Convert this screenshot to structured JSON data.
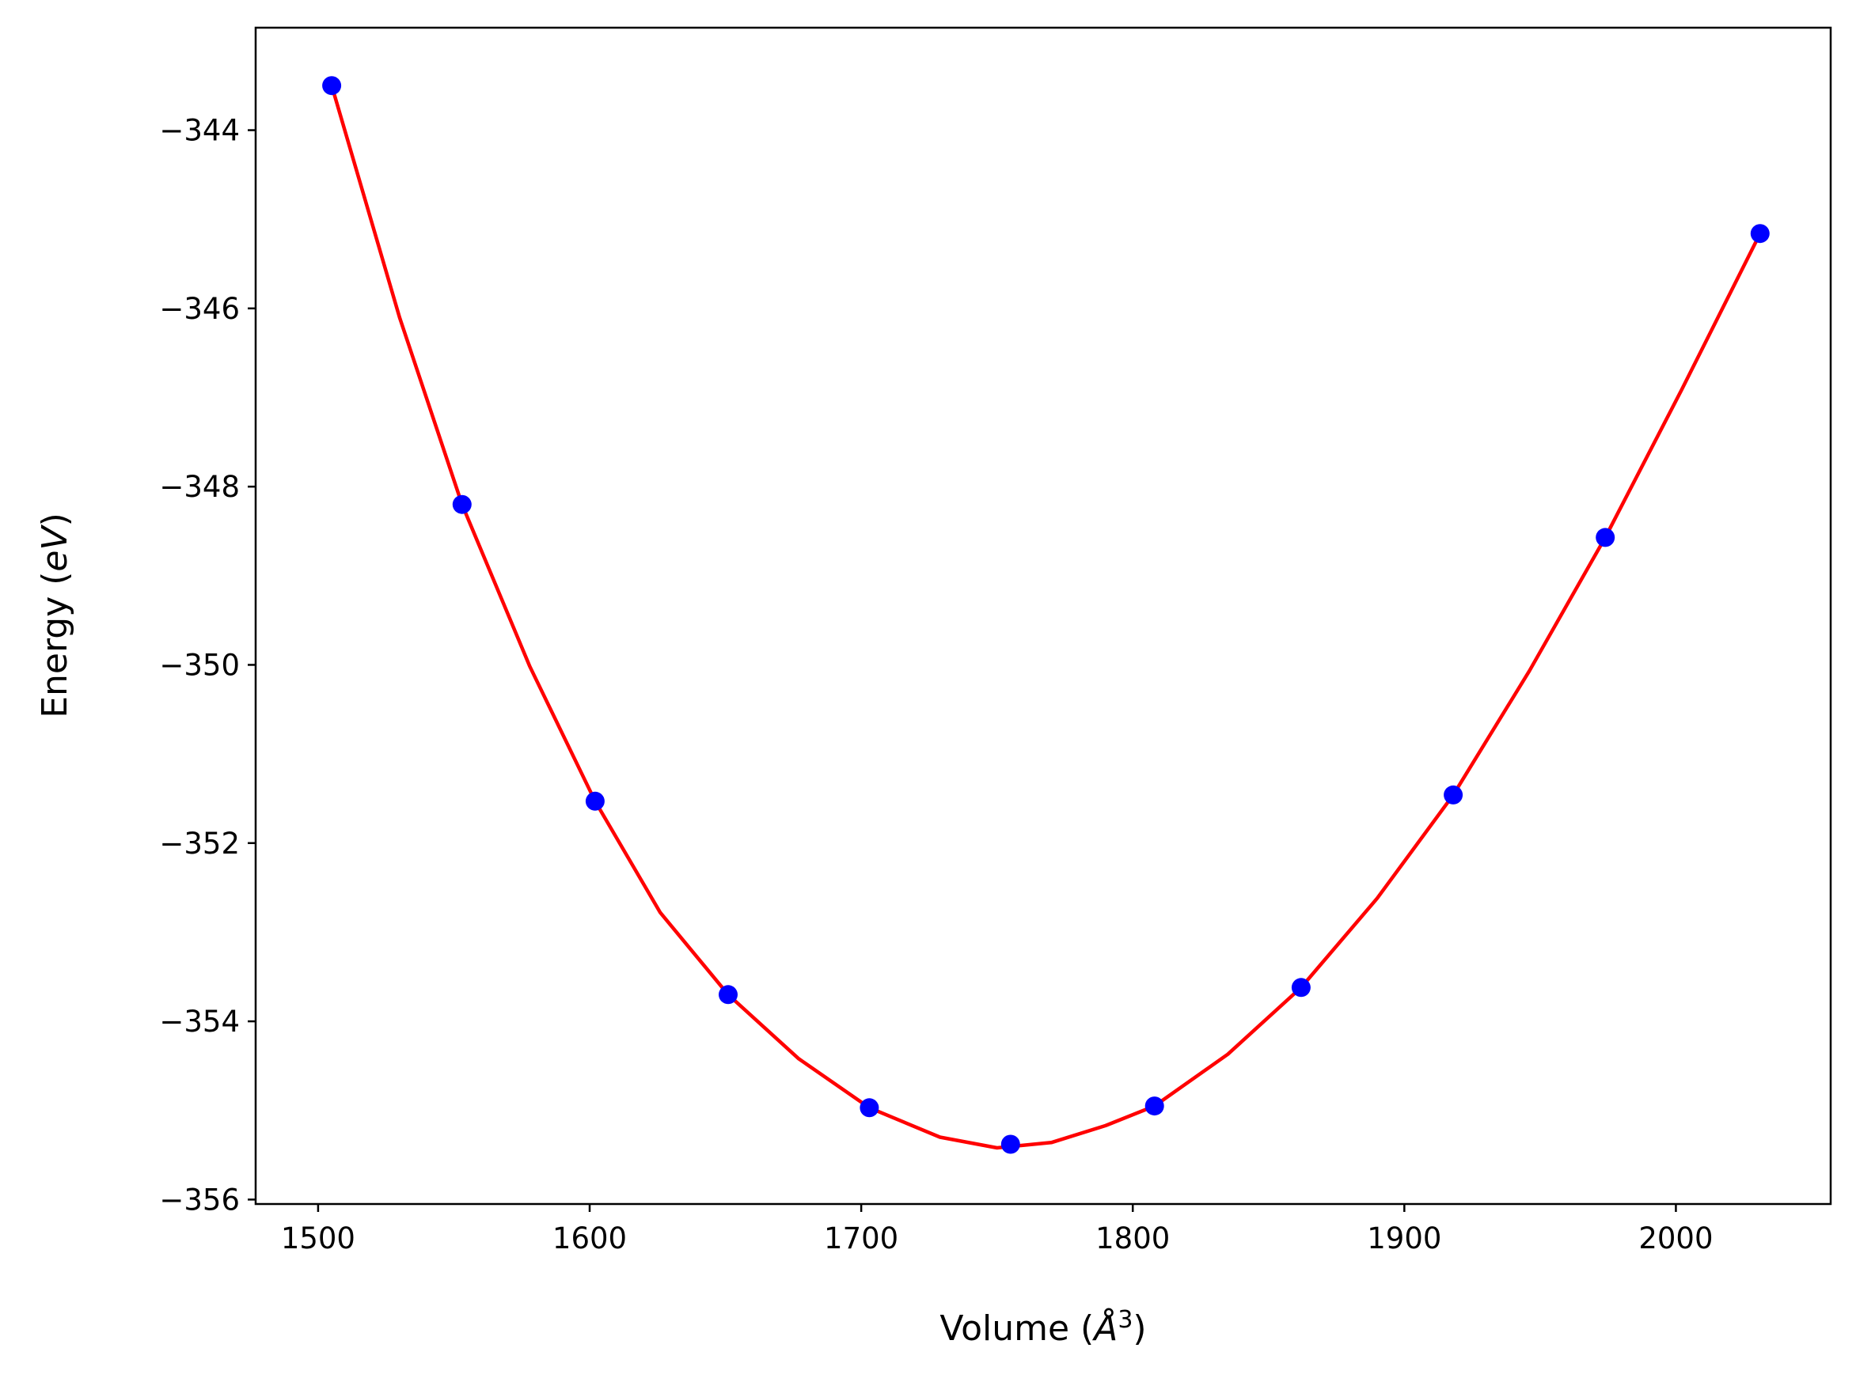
{
  "chart_data": {
    "type": "scatter",
    "title": "",
    "xlabel": {
      "prefix": "Volume (",
      "symbol": "Å",
      "superscript": "3",
      "suffix": ")"
    },
    "ylabel": {
      "prefix": "Energy (",
      "symbol": "eV",
      "suffix": ")"
    },
    "xlim": [
      1477,
      2057
    ],
    "ylim": [
      -356.05,
      -342.85
    ],
    "x_ticks": [
      1500,
      1600,
      1700,
      1800,
      1900,
      2000
    ],
    "y_ticks": [
      -344,
      -346,
      -348,
      -350,
      -352,
      -354,
      -356
    ],
    "x_tick_labels": [
      "1500",
      "1600",
      "1700",
      "1800",
      "1900",
      "2000"
    ],
    "y_tick_labels": [
      "−344",
      "−346",
      "−348",
      "−350",
      "−352",
      "−354",
      "−356"
    ],
    "grid": false,
    "series": [
      {
        "kind": "points",
        "color": "#0000ff",
        "x": [
          1505,
          1553,
          1602,
          1651,
          1703,
          1755,
          1808,
          1862,
          1918,
          1974,
          2031
        ],
        "y": [
          -343.5,
          -348.2,
          -351.53,
          -353.7,
          -354.97,
          -355.38,
          -354.95,
          -353.62,
          -351.46,
          -348.57,
          -345.16
        ]
      },
      {
        "kind": "fit-curve",
        "color": "#ff0000",
        "x": [
          1505,
          1530,
          1553,
          1578,
          1602,
          1626,
          1651,
          1677,
          1703,
          1729,
          1750,
          1770,
          1790,
          1808,
          1835,
          1862,
          1890,
          1918,
          1946,
          1974,
          2002,
          2031
        ],
        "y": [
          -343.5,
          -346.1,
          -348.2,
          -350.02,
          -351.53,
          -352.78,
          -353.7,
          -354.42,
          -354.97,
          -355.3,
          -355.42,
          -355.36,
          -355.17,
          -354.95,
          -354.37,
          -353.62,
          -352.62,
          -351.46,
          -350.07,
          -348.57,
          -346.92,
          -345.16
        ]
      }
    ]
  }
}
